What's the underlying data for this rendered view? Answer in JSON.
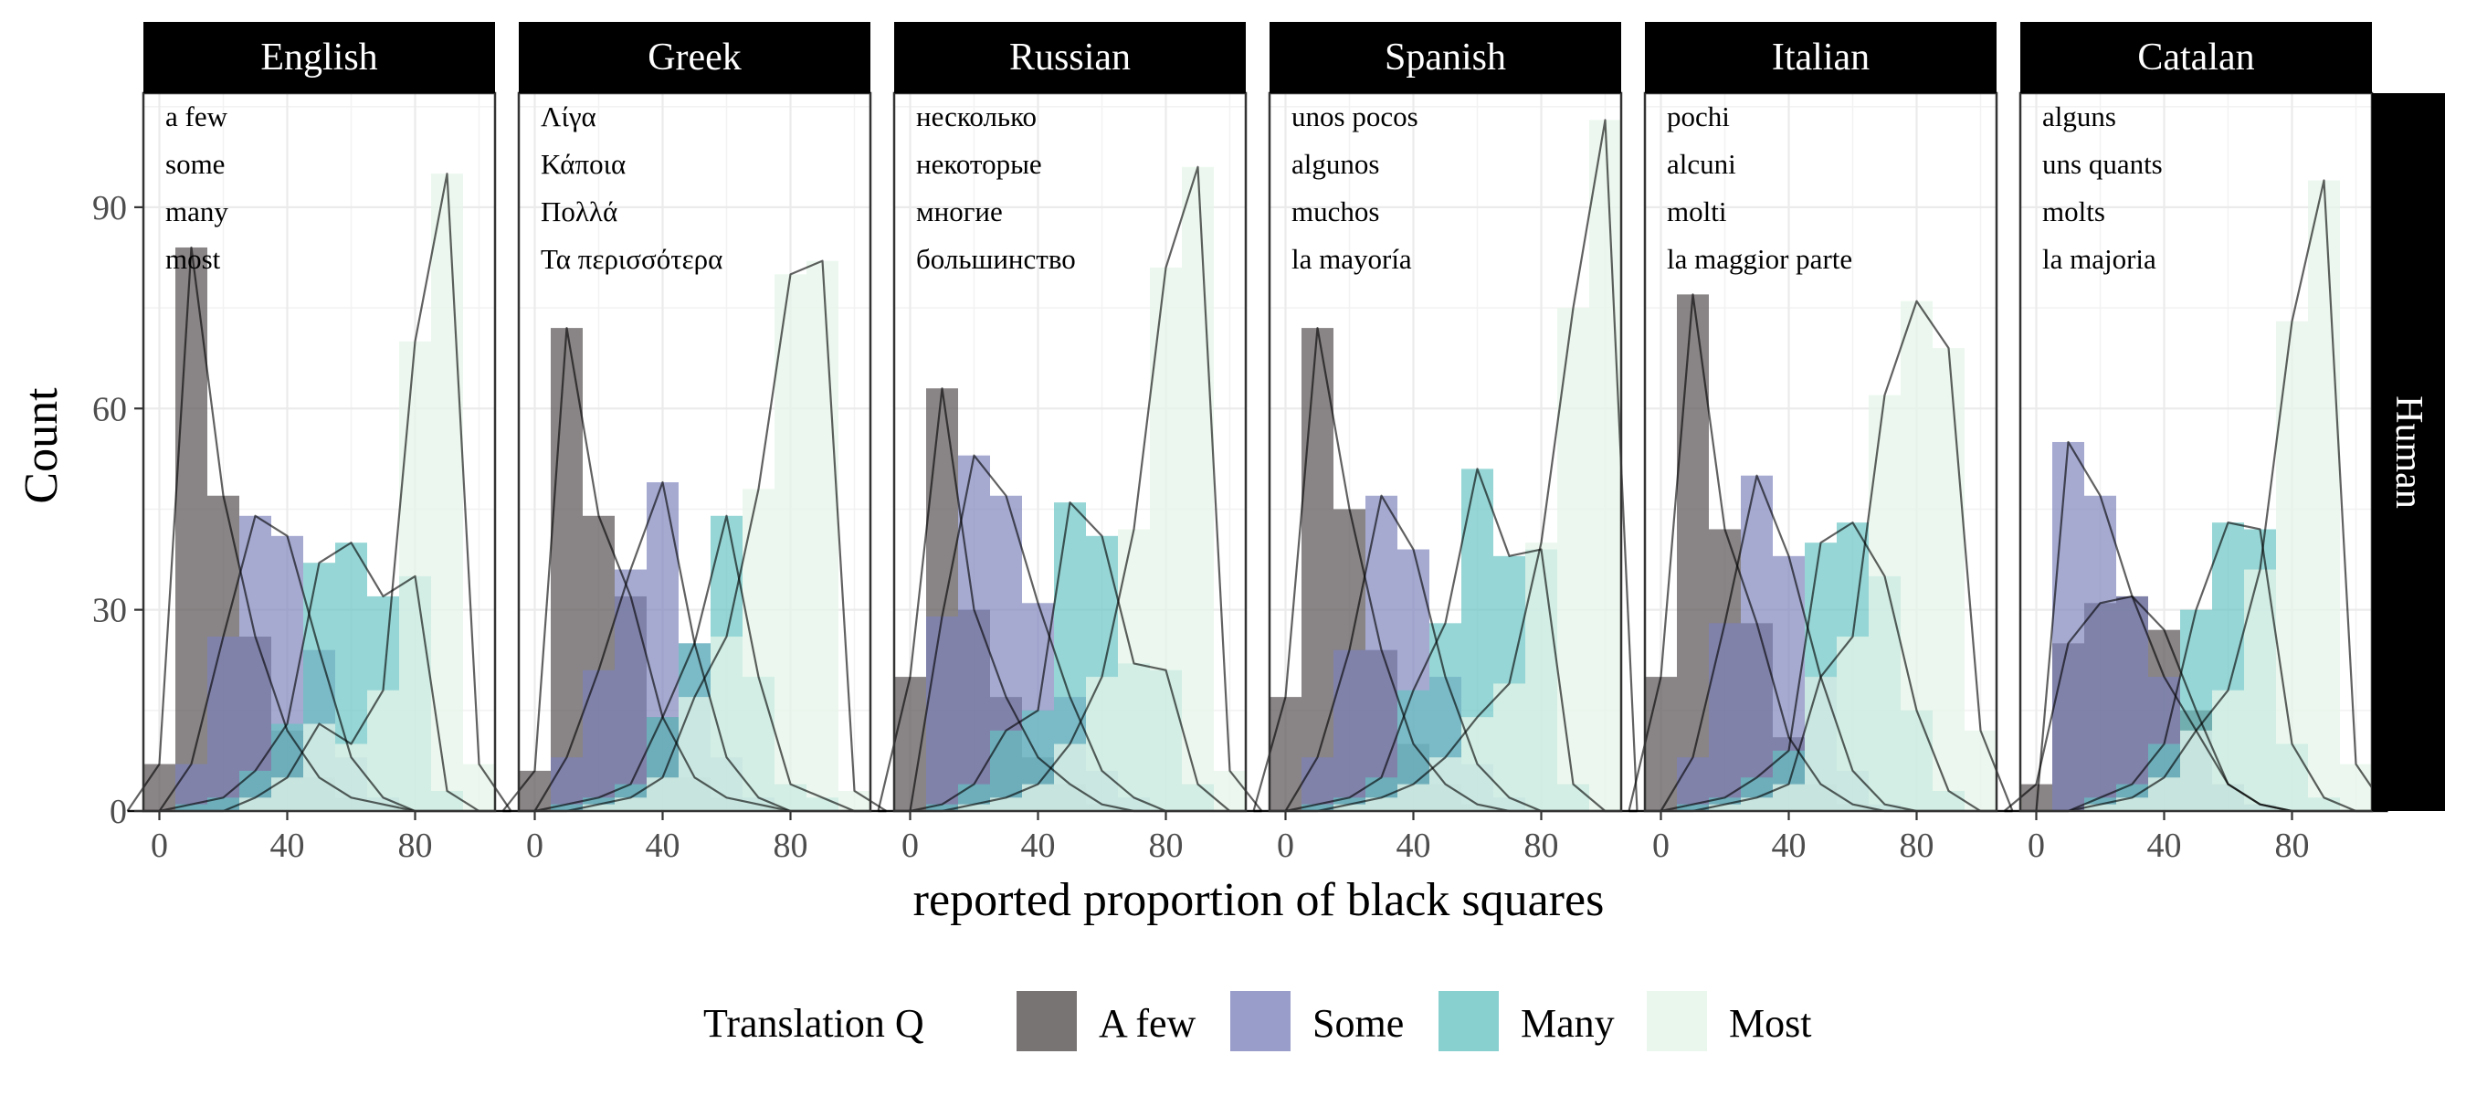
{
  "chart_data": {
    "type": "histogram",
    "xlabel": "reported proportion of black squares",
    "ylabel": "Count",
    "row_strip": "Human",
    "legend": {
      "title": "Translation Q",
      "position": "bottom",
      "entries": [
        {
          "label": "A few",
          "color": "#5b5556"
        },
        {
          "label": "Some",
          "color": "#7c82bb"
        },
        {
          "label": "Many",
          "color": "#66c2c2"
        },
        {
          "label": "Most",
          "color": "#e6f6ea"
        }
      ]
    },
    "bin_width": 10,
    "bin_centers": [
      0,
      10,
      20,
      30,
      40,
      50,
      60,
      70,
      80,
      90,
      100
    ],
    "xlim": [
      -5,
      105
    ],
    "ylim": [
      0,
      107
    ],
    "x_ticks": [
      0,
      40,
      80
    ],
    "y_ticks": [
      0,
      30,
      60,
      90
    ],
    "grid": true,
    "panels": [
      {
        "language": "English",
        "words": [
          "a few",
          "some",
          "many",
          "most"
        ],
        "series": [
          {
            "name": "A few",
            "values": [
              7,
              84,
              47,
              26,
              12,
              5,
              2,
              1,
              0,
              0,
              0
            ]
          },
          {
            "name": "Some",
            "values": [
              0,
              7,
              26,
              44,
              41,
              24,
              8,
              2,
              0,
              0,
              0
            ]
          },
          {
            "name": "Many",
            "values": [
              0,
              1,
              2,
              6,
              13,
              37,
              40,
              32,
              35,
              3,
              0
            ]
          },
          {
            "name": "Most",
            "values": [
              0,
              0,
              0,
              2,
              5,
              13,
              10,
              18,
              70,
              95,
              7
            ]
          }
        ]
      },
      {
        "language": "Greek",
        "words": [
          "Λίγα",
          "Κάποια",
          "Πολλά",
          "Τα περισσότερα"
        ],
        "series": [
          {
            "name": "A few",
            "values": [
              6,
              72,
              44,
              32,
              14,
              5,
              2,
              1,
              0,
              0,
              0
            ]
          },
          {
            "name": "Some",
            "values": [
              0,
              8,
              21,
              36,
              49,
              25,
              8,
              2,
              0,
              0,
              0
            ]
          },
          {
            "name": "Many",
            "values": [
              0,
              1,
              2,
              4,
              14,
              25,
              44,
              20,
              4,
              2,
              0
            ]
          },
          {
            "name": "Most",
            "values": [
              0,
              0,
              1,
              2,
              5,
              17,
              26,
              48,
              80,
              82,
              3
            ]
          }
        ]
      },
      {
        "language": "Russian",
        "words": [
          "несколько",
          "некоторые",
          "многие",
          "большинство"
        ],
        "series": [
          {
            "name": "A few",
            "values": [
              20,
              63,
              30,
              17,
              8,
              4,
              1,
              0,
              0,
              0,
              0
            ]
          },
          {
            "name": "Some",
            "values": [
              0,
              29,
              53,
              47,
              31,
              17,
              6,
              2,
              0,
              0,
              0
            ]
          },
          {
            "name": "Many",
            "values": [
              0,
              1,
              4,
              12,
              15,
              46,
              41,
              22,
              21,
              4,
              0
            ]
          },
          {
            "name": "Most",
            "values": [
              0,
              0,
              1,
              2,
              4,
              10,
              20,
              42,
              81,
              96,
              6
            ]
          }
        ]
      },
      {
        "language": "Spanish",
        "words": [
          "unos pocos",
          "algunos",
          "muchos",
          "la mayoría"
        ],
        "series": [
          {
            "name": "A few",
            "values": [
              17,
              72,
              45,
              24,
              10,
              4,
              1,
              0,
              0,
              0,
              0
            ]
          },
          {
            "name": "Some",
            "values": [
              0,
              8,
              24,
              47,
              39,
              20,
              7,
              2,
              0,
              0,
              0
            ]
          },
          {
            "name": "Many",
            "values": [
              0,
              1,
              2,
              5,
              18,
              28,
              51,
              38,
              39,
              4,
              0
            ]
          },
          {
            "name": "Most",
            "values": [
              0,
              0,
              1,
              2,
              4,
              8,
              14,
              19,
              40,
              75,
              103
            ]
          }
        ]
      },
      {
        "language": "Italian",
        "words": [
          "pochi",
          "alcuni",
          "molti",
          "la maggior parte"
        ],
        "series": [
          {
            "name": "A few",
            "values": [
              20,
              77,
              42,
              28,
              11,
              4,
              1,
              0,
              0,
              0,
              0
            ]
          },
          {
            "name": "Some",
            "values": [
              0,
              8,
              28,
              50,
              38,
              20,
              6,
              1,
              0,
              0,
              0
            ]
          },
          {
            "name": "Many",
            "values": [
              0,
              1,
              2,
              5,
              9,
              40,
              43,
              35,
              15,
              3,
              0
            ]
          },
          {
            "name": "Most",
            "values": [
              0,
              0,
              1,
              2,
              4,
              20,
              26,
              62,
              76,
              69,
              12
            ]
          }
        ]
      },
      {
        "language": "Catalan",
        "words": [
          "alguns",
          "uns quants",
          "molts",
          "la majoria"
        ],
        "series": [
          {
            "name": "A few",
            "values": [
              4,
              25,
              31,
              32,
              27,
              15,
              4,
              1,
              0,
              0,
              0
            ]
          },
          {
            "name": "Some",
            "values": [
              0,
              55,
              47,
              32,
              20,
              12,
              4,
              1,
              0,
              0,
              0
            ]
          },
          {
            "name": "Many",
            "values": [
              0,
              0,
              2,
              4,
              10,
              30,
              43,
              42,
              10,
              2,
              0
            ]
          },
          {
            "name": "Most",
            "values": [
              0,
              0,
              1,
              2,
              5,
              12,
              18,
              36,
              73,
              94,
              7
            ]
          }
        ]
      }
    ]
  }
}
